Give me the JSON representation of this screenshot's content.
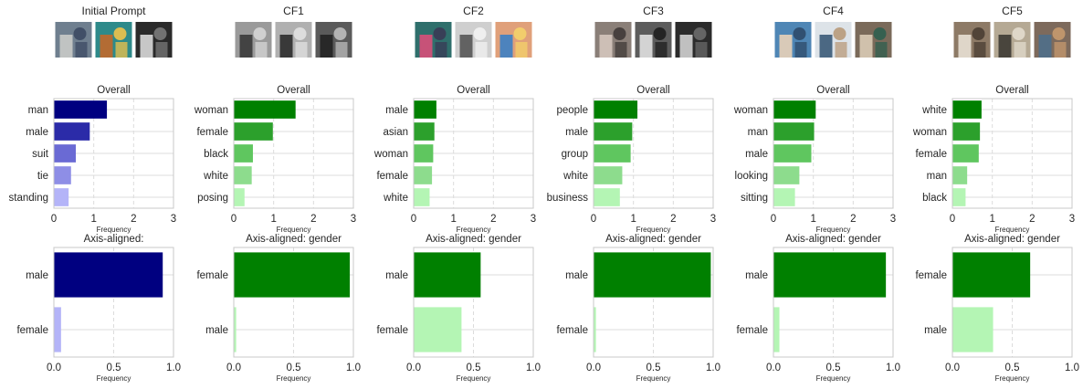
{
  "columns": [
    {
      "title": "Initial Prompt",
      "thumbs": [
        {
          "name": "thumb-man-in-suit",
          "colors": [
            "#6f7f8f",
            "#c9cbc8",
            "#3c4a63"
          ]
        },
        {
          "name": "thumb-pattern",
          "colors": [
            "#2e8a8a",
            "#c2682a",
            "#f0c24a"
          ]
        },
        {
          "name": "thumb-bw-men",
          "colors": [
            "#2a2a2a",
            "#d8d8d8",
            "#7a7a7a"
          ]
        }
      ]
    },
    {
      "title": "CF1",
      "thumbs": [
        {
          "name": "thumb-woman-gray",
          "colors": [
            "#9a9a9a",
            "#3a3a3a",
            "#d6d6d6"
          ]
        },
        {
          "name": "thumb-woman-dress",
          "colors": [
            "#b0b0b0",
            "#2c2c2c",
            "#e2e2e2"
          ]
        },
        {
          "name": "thumb-woman-portrait",
          "colors": [
            "#5a5a5a",
            "#222222",
            "#bcbcbc"
          ]
        }
      ]
    },
    {
      "title": "CF2",
      "thumbs": [
        {
          "name": "thumb-storefront",
          "colors": [
            "#2f6f6c",
            "#d84f7a",
            "#3a3a55"
          ]
        },
        {
          "name": "thumb-sign-holder",
          "colors": [
            "#cfcfcf",
            "#555555",
            "#f2f2f2"
          ]
        },
        {
          "name": "thumb-painted-face",
          "colors": [
            "#e0a07a",
            "#3d7fc4",
            "#f4d16a"
          ]
        }
      ]
    },
    {
      "title": "CF3",
      "thumbs": [
        {
          "name": "thumb-crowd-grid",
          "colors": [
            "#8a7f78",
            "#d4c7bd",
            "#3f3a37"
          ]
        },
        {
          "name": "thumb-crowd-bw",
          "colors": [
            "#5c5c5c",
            "#e0e0e0",
            "#1e1e1e"
          ]
        },
        {
          "name": "thumb-crowd-bw-2",
          "colors": [
            "#2b2b2b",
            "#d0d0d0",
            "#6a6a6a"
          ]
        }
      ]
    },
    {
      "title": "CF4",
      "thumbs": [
        {
          "name": "thumb-office-people",
          "colors": [
            "#4f86b5",
            "#e8d2b8",
            "#2e4a6a"
          ]
        },
        {
          "name": "thumb-office-team",
          "colors": [
            "#dde3e8",
            "#3b5a78",
            "#b89a7a"
          ]
        },
        {
          "name": "thumb-office-desk",
          "colors": [
            "#7a6a5a",
            "#d9cbb5",
            "#2f5f4f"
          ]
        }
      ]
    },
    {
      "title": "CF5",
      "thumbs": [
        {
          "name": "thumb-symbol",
          "colors": [
            "#8d7a66",
            "#e8e0d4",
            "#4a3e33"
          ]
        },
        {
          "name": "thumb-vintage-portrait",
          "colors": [
            "#b5a994",
            "#3d3a33",
            "#e3dccd"
          ]
        },
        {
          "name": "thumb-mosaic",
          "colors": [
            "#7d6a5c",
            "#4f6f8a",
            "#c79a6e"
          ]
        }
      ]
    }
  ],
  "chart_data": [
    {
      "type": "bar",
      "orientation": "horizontal",
      "column": 0,
      "row": "top",
      "title": "Overall",
      "xlabel": "Frequency",
      "xlim": [
        0,
        3
      ],
      "xticks": [
        0,
        1,
        2,
        3
      ],
      "categories": [
        "man",
        "male",
        "suit",
        "tie",
        "standing"
      ],
      "values": [
        1.33,
        0.9,
        0.55,
        0.43,
        0.37
      ],
      "colors": [
        "#000080",
        "#2b2ba8",
        "#6a6ad4",
        "#8e8ee6",
        "#b4b4f8"
      ]
    },
    {
      "type": "bar",
      "orientation": "horizontal",
      "column": 1,
      "row": "top",
      "title": "Overall",
      "xlabel": "Frequency",
      "xlim": [
        0,
        3
      ],
      "xticks": [
        0,
        1,
        2,
        3
      ],
      "categories": [
        "woman",
        "female",
        "black",
        "white",
        "posing"
      ],
      "values": [
        1.55,
        0.98,
        0.48,
        0.45,
        0.27
      ],
      "colors": [
        "#008000",
        "#2ca02c",
        "#5fc65f",
        "#8ddc8d",
        "#b4f5b4"
      ]
    },
    {
      "type": "bar",
      "orientation": "horizontal",
      "column": 2,
      "row": "top",
      "title": "Overall",
      "xlabel": "Frequency",
      "xlim": [
        0,
        3
      ],
      "xticks": [
        0,
        1,
        2,
        3
      ],
      "categories": [
        "male",
        "asian",
        "woman",
        "female",
        "white"
      ],
      "values": [
        0.57,
        0.52,
        0.49,
        0.46,
        0.4
      ],
      "colors": [
        "#008000",
        "#2ca02c",
        "#5fc65f",
        "#8ddc8d",
        "#b4f5b4"
      ]
    },
    {
      "type": "bar",
      "orientation": "horizontal",
      "column": 3,
      "row": "top",
      "title": "Overall",
      "xlabel": "Frequency",
      "xlim": [
        0,
        3
      ],
      "xticks": [
        0,
        1,
        2,
        3
      ],
      "categories": [
        "people",
        "male",
        "group",
        "white",
        "business"
      ],
      "values": [
        1.1,
        0.97,
        0.93,
        0.72,
        0.66
      ],
      "colors": [
        "#008000",
        "#2ca02c",
        "#5fc65f",
        "#8ddc8d",
        "#b4f5b4"
      ]
    },
    {
      "type": "bar",
      "orientation": "horizontal",
      "column": 4,
      "row": "top",
      "title": "Overall",
      "xlabel": "Frequency",
      "xlim": [
        0,
        3
      ],
      "xticks": [
        0,
        1,
        2,
        3
      ],
      "categories": [
        "woman",
        "man",
        "male",
        "looking",
        "sitting"
      ],
      "values": [
        1.06,
        1.02,
        0.95,
        0.65,
        0.54
      ],
      "colors": [
        "#008000",
        "#2ca02c",
        "#5fc65f",
        "#8ddc8d",
        "#b4f5b4"
      ]
    },
    {
      "type": "bar",
      "orientation": "horizontal",
      "column": 5,
      "row": "top",
      "title": "Overall",
      "xlabel": "Frequency",
      "xlim": [
        0,
        3
      ],
      "xticks": [
        0,
        1,
        2,
        3
      ],
      "categories": [
        "white",
        "woman",
        "female",
        "man",
        "black"
      ],
      "values": [
        0.73,
        0.69,
        0.66,
        0.37,
        0.33
      ],
      "colors": [
        "#008000",
        "#2ca02c",
        "#5fc65f",
        "#8ddc8d",
        "#b4f5b4"
      ]
    },
    {
      "type": "bar",
      "orientation": "horizontal",
      "column": 0,
      "row": "bottom",
      "title": "Axis-aligned:",
      "xlabel": "Frequency",
      "xlim": [
        0,
        1
      ],
      "xticks": [
        0,
        0.5,
        1
      ],
      "xticklabels": [
        "0.0",
        "0.5",
        "1.0"
      ],
      "categories": [
        "male",
        "female"
      ],
      "values": [
        0.91,
        0.06
      ],
      "colors": [
        "#000080",
        "#b4b4f8"
      ]
    },
    {
      "type": "bar",
      "orientation": "horizontal",
      "column": 1,
      "row": "bottom",
      "title": "Axis-aligned: gender",
      "xlabel": "Frequency",
      "xlim": [
        0,
        1
      ],
      "xticks": [
        0,
        0.5,
        1
      ],
      "xticklabels": [
        "0.0",
        "0.5",
        "1.0"
      ],
      "categories": [
        "female",
        "male"
      ],
      "values": [
        0.97,
        0.02
      ],
      "colors": [
        "#008000",
        "#b4f5b4"
      ]
    },
    {
      "type": "bar",
      "orientation": "horizontal",
      "column": 2,
      "row": "bottom",
      "title": "Axis-aligned: gender",
      "xlabel": "Frequency",
      "xlim": [
        0,
        1
      ],
      "xticks": [
        0,
        0.5,
        1
      ],
      "xticklabels": [
        "0.0",
        "0.5",
        "1.0"
      ],
      "categories": [
        "male",
        "female"
      ],
      "values": [
        0.56,
        0.4
      ],
      "colors": [
        "#008000",
        "#b4f5b4"
      ]
    },
    {
      "type": "bar",
      "orientation": "horizontal",
      "column": 3,
      "row": "bottom",
      "title": "Axis-aligned: gender",
      "xlabel": "Frequency",
      "xlim": [
        0,
        1
      ],
      "xticks": [
        0,
        0.5,
        1
      ],
      "xticklabels": [
        "0.0",
        "0.5",
        "1.0"
      ],
      "categories": [
        "male",
        "female"
      ],
      "values": [
        0.98,
        0.02
      ],
      "colors": [
        "#008000",
        "#b4f5b4"
      ]
    },
    {
      "type": "bar",
      "orientation": "horizontal",
      "column": 4,
      "row": "bottom",
      "title": "Axis-aligned: gender",
      "xlabel": "Frequency",
      "xlim": [
        0,
        1
      ],
      "xticks": [
        0,
        0.5,
        1
      ],
      "xticklabels": [
        "0.0",
        "0.5",
        "1.0"
      ],
      "categories": [
        "male",
        "female"
      ],
      "values": [
        0.94,
        0.05
      ],
      "colors": [
        "#008000",
        "#b4f5b4"
      ]
    },
    {
      "type": "bar",
      "orientation": "horizontal",
      "column": 5,
      "row": "bottom",
      "title": "Axis-aligned: gender",
      "xlabel": "Frequency",
      "xlim": [
        0,
        1
      ],
      "xticks": [
        0,
        0.5,
        1
      ],
      "xticklabels": [
        "0.0",
        "0.5",
        "1.0"
      ],
      "categories": [
        "female",
        "male"
      ],
      "values": [
        0.65,
        0.34
      ],
      "colors": [
        "#008000",
        "#b4f5b4"
      ]
    }
  ]
}
